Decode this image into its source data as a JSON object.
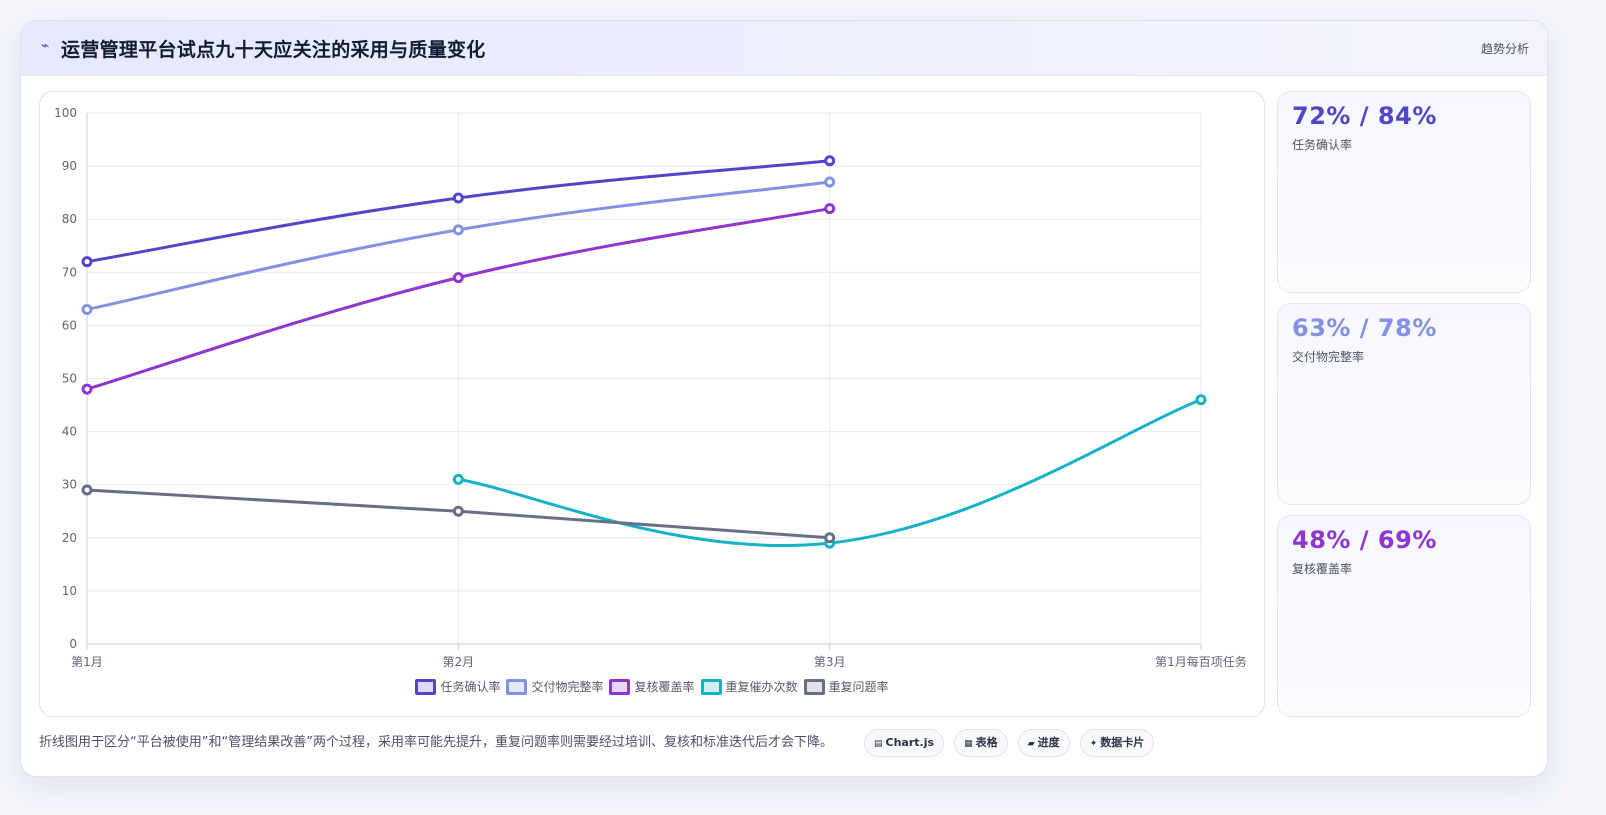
{
  "header": {
    "icon": "trend-icon",
    "title": "运营管理平台试点九十天应关注的采用与质量变化",
    "tag": "趋势分析"
  },
  "chart_data": {
    "type": "line",
    "categories": [
      "第1月",
      "第2月",
      "第3月",
      "第1月每百项任务"
    ],
    "ylim": [
      0,
      100
    ],
    "yticks": [
      0,
      10,
      20,
      30,
      40,
      50,
      60,
      70,
      80,
      90,
      100
    ],
    "grid": true,
    "legend_position": "bottom",
    "series": [
      {
        "name": "任务确认率",
        "color": "#4f46c9",
        "values": [
          72,
          84,
          91,
          null
        ]
      },
      {
        "name": "交付物完整率",
        "color": "#8490e4",
        "values": [
          63,
          78,
          87,
          null
        ]
      },
      {
        "name": "复核覆盖率",
        "color": "#8e35d2",
        "values": [
          48,
          69,
          82,
          null
        ]
      },
      {
        "name": "重复催办次数",
        "color": "#16b2c8",
        "values": [
          null,
          31,
          19,
          46
        ]
      },
      {
        "name": "重复问题率",
        "color": "#667085",
        "values": [
          29,
          25,
          20,
          null
        ]
      }
    ]
  },
  "kpis": [
    {
      "value": "72% / 84%",
      "label": "任务确认率",
      "color": "#4f46c9"
    },
    {
      "value": "63% / 78%",
      "label": "交付物完整率",
      "color": "#8490e4"
    },
    {
      "value": "48% / 69%",
      "label": "复核覆盖率",
      "color": "#8e35d2"
    }
  ],
  "footer": {
    "note": "折线图用于区分“平台被使用”和“管理结果改善”两个过程，采用率可能先提升，重复问题率则需要经过培训、复核和标准迭代后才会下降。",
    "chips": [
      {
        "icon": "chart-icon",
        "glyph": "▤",
        "label": "Chart.js"
      },
      {
        "icon": "table-icon",
        "glyph": "▦",
        "label": "表格"
      },
      {
        "icon": "progress-icon",
        "glyph": "▰",
        "label": "进度"
      },
      {
        "icon": "card-icon",
        "glyph": "✦",
        "label": "数据卡片"
      }
    ]
  }
}
